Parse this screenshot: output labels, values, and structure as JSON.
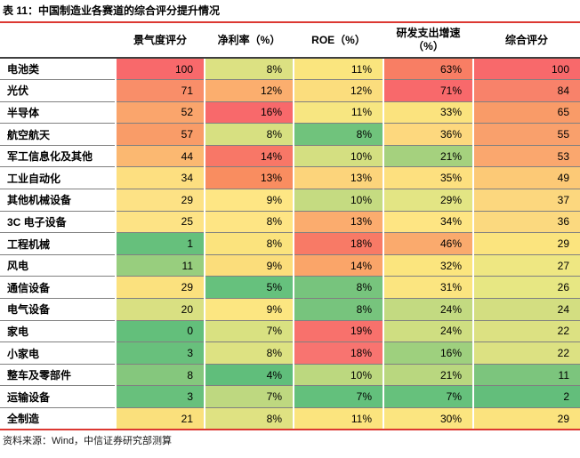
{
  "title": "表 11：中国制造业各赛道的综合评分提升情况",
  "footer": "资料来源：Wind，中信证券研究部测算",
  "accent_red": "#DC3832",
  "header_rule_color": "#3f3f3f",
  "row_separator_color": "#808080",
  "table": {
    "columns": [
      "",
      "景气度评分",
      "净利率（%）",
      "ROE（%）",
      "研发支出增速\n（%）",
      "综合评分"
    ],
    "rows": [
      {
        "label": "电池类",
        "cells": [
          {
            "v": "100",
            "c": "#F8696B"
          },
          {
            "v": "8%",
            "c": "#DCE182"
          },
          {
            "v": "11%",
            "c": "#FAE57E"
          },
          {
            "v": "63%",
            "c": "#F87E64"
          },
          {
            "v": "100",
            "c": "#F8696B"
          }
        ]
      },
      {
        "label": "光伏",
        "cells": [
          {
            "v": "71",
            "c": "#F98E69"
          },
          {
            "v": "12%",
            "c": "#FBAE6E"
          },
          {
            "v": "12%",
            "c": "#FBDD7D"
          },
          {
            "v": "71%",
            "c": "#F8696B"
          },
          {
            "v": "84",
            "c": "#F8826A"
          }
        ]
      },
      {
        "label": "半导体",
        "cells": [
          {
            "v": "52",
            "c": "#FAA56C"
          },
          {
            "v": "16%",
            "c": "#F8696B"
          },
          {
            "v": "11%",
            "c": "#F7E681"
          },
          {
            "v": "33%",
            "c": "#FBE37E"
          },
          {
            "v": "65",
            "c": "#F99B68"
          }
        ]
      },
      {
        "label": "航空航天",
        "cells": [
          {
            "v": "57",
            "c": "#F99C68"
          },
          {
            "v": "8%",
            "c": "#D7E081"
          },
          {
            "v": "8%",
            "c": "#70C37C"
          },
          {
            "v": "36%",
            "c": "#FDD87E"
          },
          {
            "v": "55",
            "c": "#F9A06C"
          }
        ]
      },
      {
        "label": "军工信息化及其他",
        "cells": [
          {
            "v": "44",
            "c": "#FBB871"
          },
          {
            "v": "14%",
            "c": "#F87767"
          },
          {
            "v": "10%",
            "c": "#D4DF81"
          },
          {
            "v": "21%",
            "c": "#A5D17E"
          },
          {
            "v": "53",
            "c": "#FAA76E"
          }
        ]
      },
      {
        "label": "工业自动化",
        "cells": [
          {
            "v": "34",
            "c": "#FDDF80"
          },
          {
            "v": "13%",
            "c": "#F98D60"
          },
          {
            "v": "13%",
            "c": "#FCD47B"
          },
          {
            "v": "35%",
            "c": "#FDE07F"
          },
          {
            "v": "49",
            "c": "#FCC976"
          }
        ]
      },
      {
        "label": "其他机械设备",
        "cells": [
          {
            "v": "29",
            "c": "#FDE285"
          },
          {
            "v": "9%",
            "c": "#FEE684"
          },
          {
            "v": "10%",
            "c": "#C5DB81"
          },
          {
            "v": "29%",
            "c": "#E3E584"
          },
          {
            "v": "37",
            "c": "#FCD77E"
          }
        ]
      },
      {
        "label": "3C 电子设备",
        "cells": [
          {
            "v": "25",
            "c": "#FDE385"
          },
          {
            "v": "8%",
            "c": "#FEE584"
          },
          {
            "v": "13%",
            "c": "#FBAC6E"
          },
          {
            "v": "34%",
            "c": "#FEE583"
          },
          {
            "v": "36",
            "c": "#FBD97F"
          }
        ]
      },
      {
        "label": "工程机械",
        "cells": [
          {
            "v": "1",
            "c": "#66C07C"
          },
          {
            "v": "8%",
            "c": "#FBE37D"
          },
          {
            "v": "18%",
            "c": "#F87A66"
          },
          {
            "v": "46%",
            "c": "#FAAA6D"
          },
          {
            "v": "29",
            "c": "#FBE47E"
          }
        ]
      },
      {
        "label": "风电",
        "cells": [
          {
            "v": "11",
            "c": "#98CE7E"
          },
          {
            "v": "9%",
            "c": "#FBDD7B"
          },
          {
            "v": "14%",
            "c": "#FAA569"
          },
          {
            "v": "32%",
            "c": "#FBE57E"
          },
          {
            "v": "27",
            "c": "#EEE782"
          }
        ]
      },
      {
        "label": "通信设备",
        "cells": [
          {
            "v": "29",
            "c": "#FBE17E"
          },
          {
            "v": "5%",
            "c": "#66C17D"
          },
          {
            "v": "8%",
            "c": "#77C47D"
          },
          {
            "v": "31%",
            "c": "#FBE580"
          },
          {
            "v": "26",
            "c": "#E7E783"
          }
        ]
      },
      {
        "label": "电气设备",
        "cells": [
          {
            "v": "20",
            "c": "#D9E082"
          },
          {
            "v": "9%",
            "c": "#FCE681"
          },
          {
            "v": "8%",
            "c": "#77C47D"
          },
          {
            "v": "24%",
            "c": "#C3DA81"
          },
          {
            "v": "24",
            "c": "#D3DE81"
          }
        ]
      },
      {
        "label": "家电",
        "cells": [
          {
            "v": "0",
            "c": "#63BF7B"
          },
          {
            "v": "7%",
            "c": "#D9E181"
          },
          {
            "v": "19%",
            "c": "#F8716C"
          },
          {
            "v": "24%",
            "c": "#CFDE81"
          },
          {
            "v": "22",
            "c": "#DCE182"
          }
        ]
      },
      {
        "label": "小家电",
        "cells": [
          {
            "v": "3",
            "c": "#68C07C"
          },
          {
            "v": "8%",
            "c": "#DDE282"
          },
          {
            "v": "18%",
            "c": "#F87470"
          },
          {
            "v": "16%",
            "c": "#9ED07E"
          },
          {
            "v": "22",
            "c": "#DCE182"
          }
        ]
      },
      {
        "label": "整车及零部件",
        "cells": [
          {
            "v": "8",
            "c": "#85C77D"
          },
          {
            "v": "4%",
            "c": "#60BE7B"
          },
          {
            "v": "10%",
            "c": "#BCD87F"
          },
          {
            "v": "21%",
            "c": "#B9D77F"
          },
          {
            "v": "11",
            "c": "#7CC57D"
          }
        ]
      },
      {
        "label": "运输设备",
        "cells": [
          {
            "v": "3",
            "c": "#68C07C"
          },
          {
            "v": "7%",
            "c": "#BED880"
          },
          {
            "v": "7%",
            "c": "#63C07C"
          },
          {
            "v": "7%",
            "c": "#66C17C"
          },
          {
            "v": "2",
            "c": "#63BE7B"
          }
        ]
      },
      {
        "label": "全制造",
        "cells": [
          {
            "v": "21",
            "c": "#FAE07C"
          },
          {
            "v": "8%",
            "c": "#DFE282"
          },
          {
            "v": "11%",
            "c": "#FBE47E"
          },
          {
            "v": "30%",
            "c": "#FBE580"
          },
          {
            "v": "29",
            "c": "#FBE37E"
          }
        ]
      }
    ]
  },
  "chart_data": {
    "type": "heatmap",
    "title": "表 11：中国制造业各赛道的综合评分提升情况",
    "columns": [
      "景气度评分",
      "净利率（%）",
      "ROE（%）",
      "研发支出增速（%）",
      "综合评分"
    ],
    "rows": [
      "电池类",
      "光伏",
      "半导体",
      "航空航天",
      "军工信息化及其他",
      "工业自动化",
      "其他机械设备",
      "3C 电子设备",
      "工程机械",
      "风电",
      "通信设备",
      "电气设备",
      "家电",
      "小家电",
      "整车及零部件",
      "运输设备",
      "全制造"
    ],
    "values": [
      [
        100,
        8,
        11,
        63,
        100
      ],
      [
        71,
        12,
        12,
        71,
        84
      ],
      [
        52,
        16,
        11,
        33,
        65
      ],
      [
        57,
        8,
        8,
        36,
        55
      ],
      [
        44,
        14,
        10,
        21,
        53
      ],
      [
        34,
        13,
        13,
        35,
        49
      ],
      [
        29,
        9,
        10,
        29,
        37
      ],
      [
        25,
        8,
        13,
        34,
        36
      ],
      [
        1,
        8,
        18,
        46,
        29
      ],
      [
        11,
        9,
        14,
        32,
        27
      ],
      [
        29,
        5,
        8,
        31,
        26
      ],
      [
        20,
        9,
        8,
        24,
        24
      ],
      [
        0,
        7,
        19,
        24,
        22
      ],
      [
        3,
        8,
        18,
        16,
        22
      ],
      [
        8,
        4,
        10,
        21,
        11
      ],
      [
        3,
        7,
        7,
        7,
        2
      ],
      [
        21,
        8,
        11,
        30,
        29
      ]
    ],
    "units": [
      "score",
      "%",
      "%",
      "%",
      "score"
    ],
    "color_scale": {
      "low": "#63BE7B",
      "mid": "#FFEB84",
      "high": "#F8696B",
      "mapping": "higher = redder, lower = greener, per column"
    },
    "source": "资料来源：Wind，中信证券研究部测算"
  }
}
